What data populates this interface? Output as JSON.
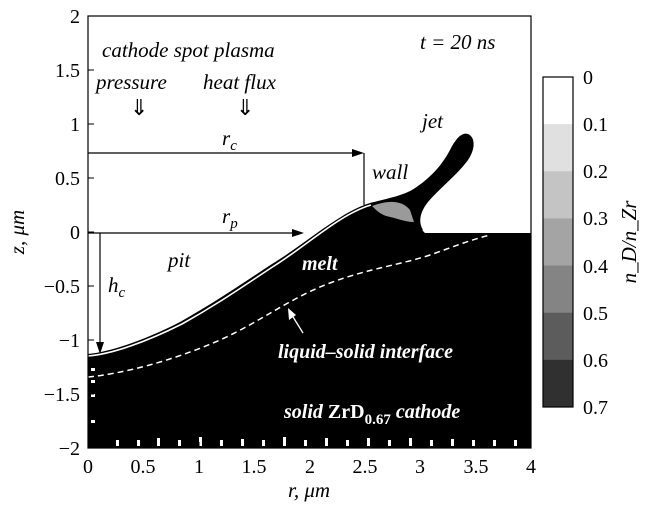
{
  "time_label": "t = 20 ns",
  "annotations": {
    "cathode_spot": "cathode spot plasma",
    "pressure": "pressure",
    "heat_flux": "heat flux",
    "jet": "jet",
    "wall": "wall",
    "rc": "r",
    "rc_sub": "c",
    "rp": "r",
    "rp_sub": "p",
    "pit": "pit",
    "hc": "h",
    "hc_sub": "c",
    "melt": "melt",
    "interface": "liquid–solid interface",
    "solid_prefix": "solid ",
    "solid_formula": "ZrD",
    "solid_sub": "0.67",
    "solid_suffix": " cathode",
    "arrow_glyph": "⇓"
  },
  "axes": {
    "xlabel": "r, μm",
    "ylabel": "z, μm",
    "xticks": [
      "0",
      "0.5",
      "1",
      "1.5",
      "2",
      "2.5",
      "3",
      "3.5",
      "4"
    ],
    "yticks": [
      "2",
      "1.5",
      "1",
      "0.5",
      "0",
      "−0.5",
      "−1",
      "−1.5",
      "−2"
    ]
  },
  "colorbar": {
    "label": "n_D/n_Zr",
    "ticks": [
      "0",
      "0.1",
      "0.2",
      "0.3",
      "0.4",
      "0.5",
      "0.6",
      "0.7"
    ],
    "colors": [
      "#ffffff",
      "#e0e0e0",
      "#c4c4c4",
      "#a4a4a4",
      "#848484",
      "#5c5c5c",
      "#303030"
    ]
  }
}
